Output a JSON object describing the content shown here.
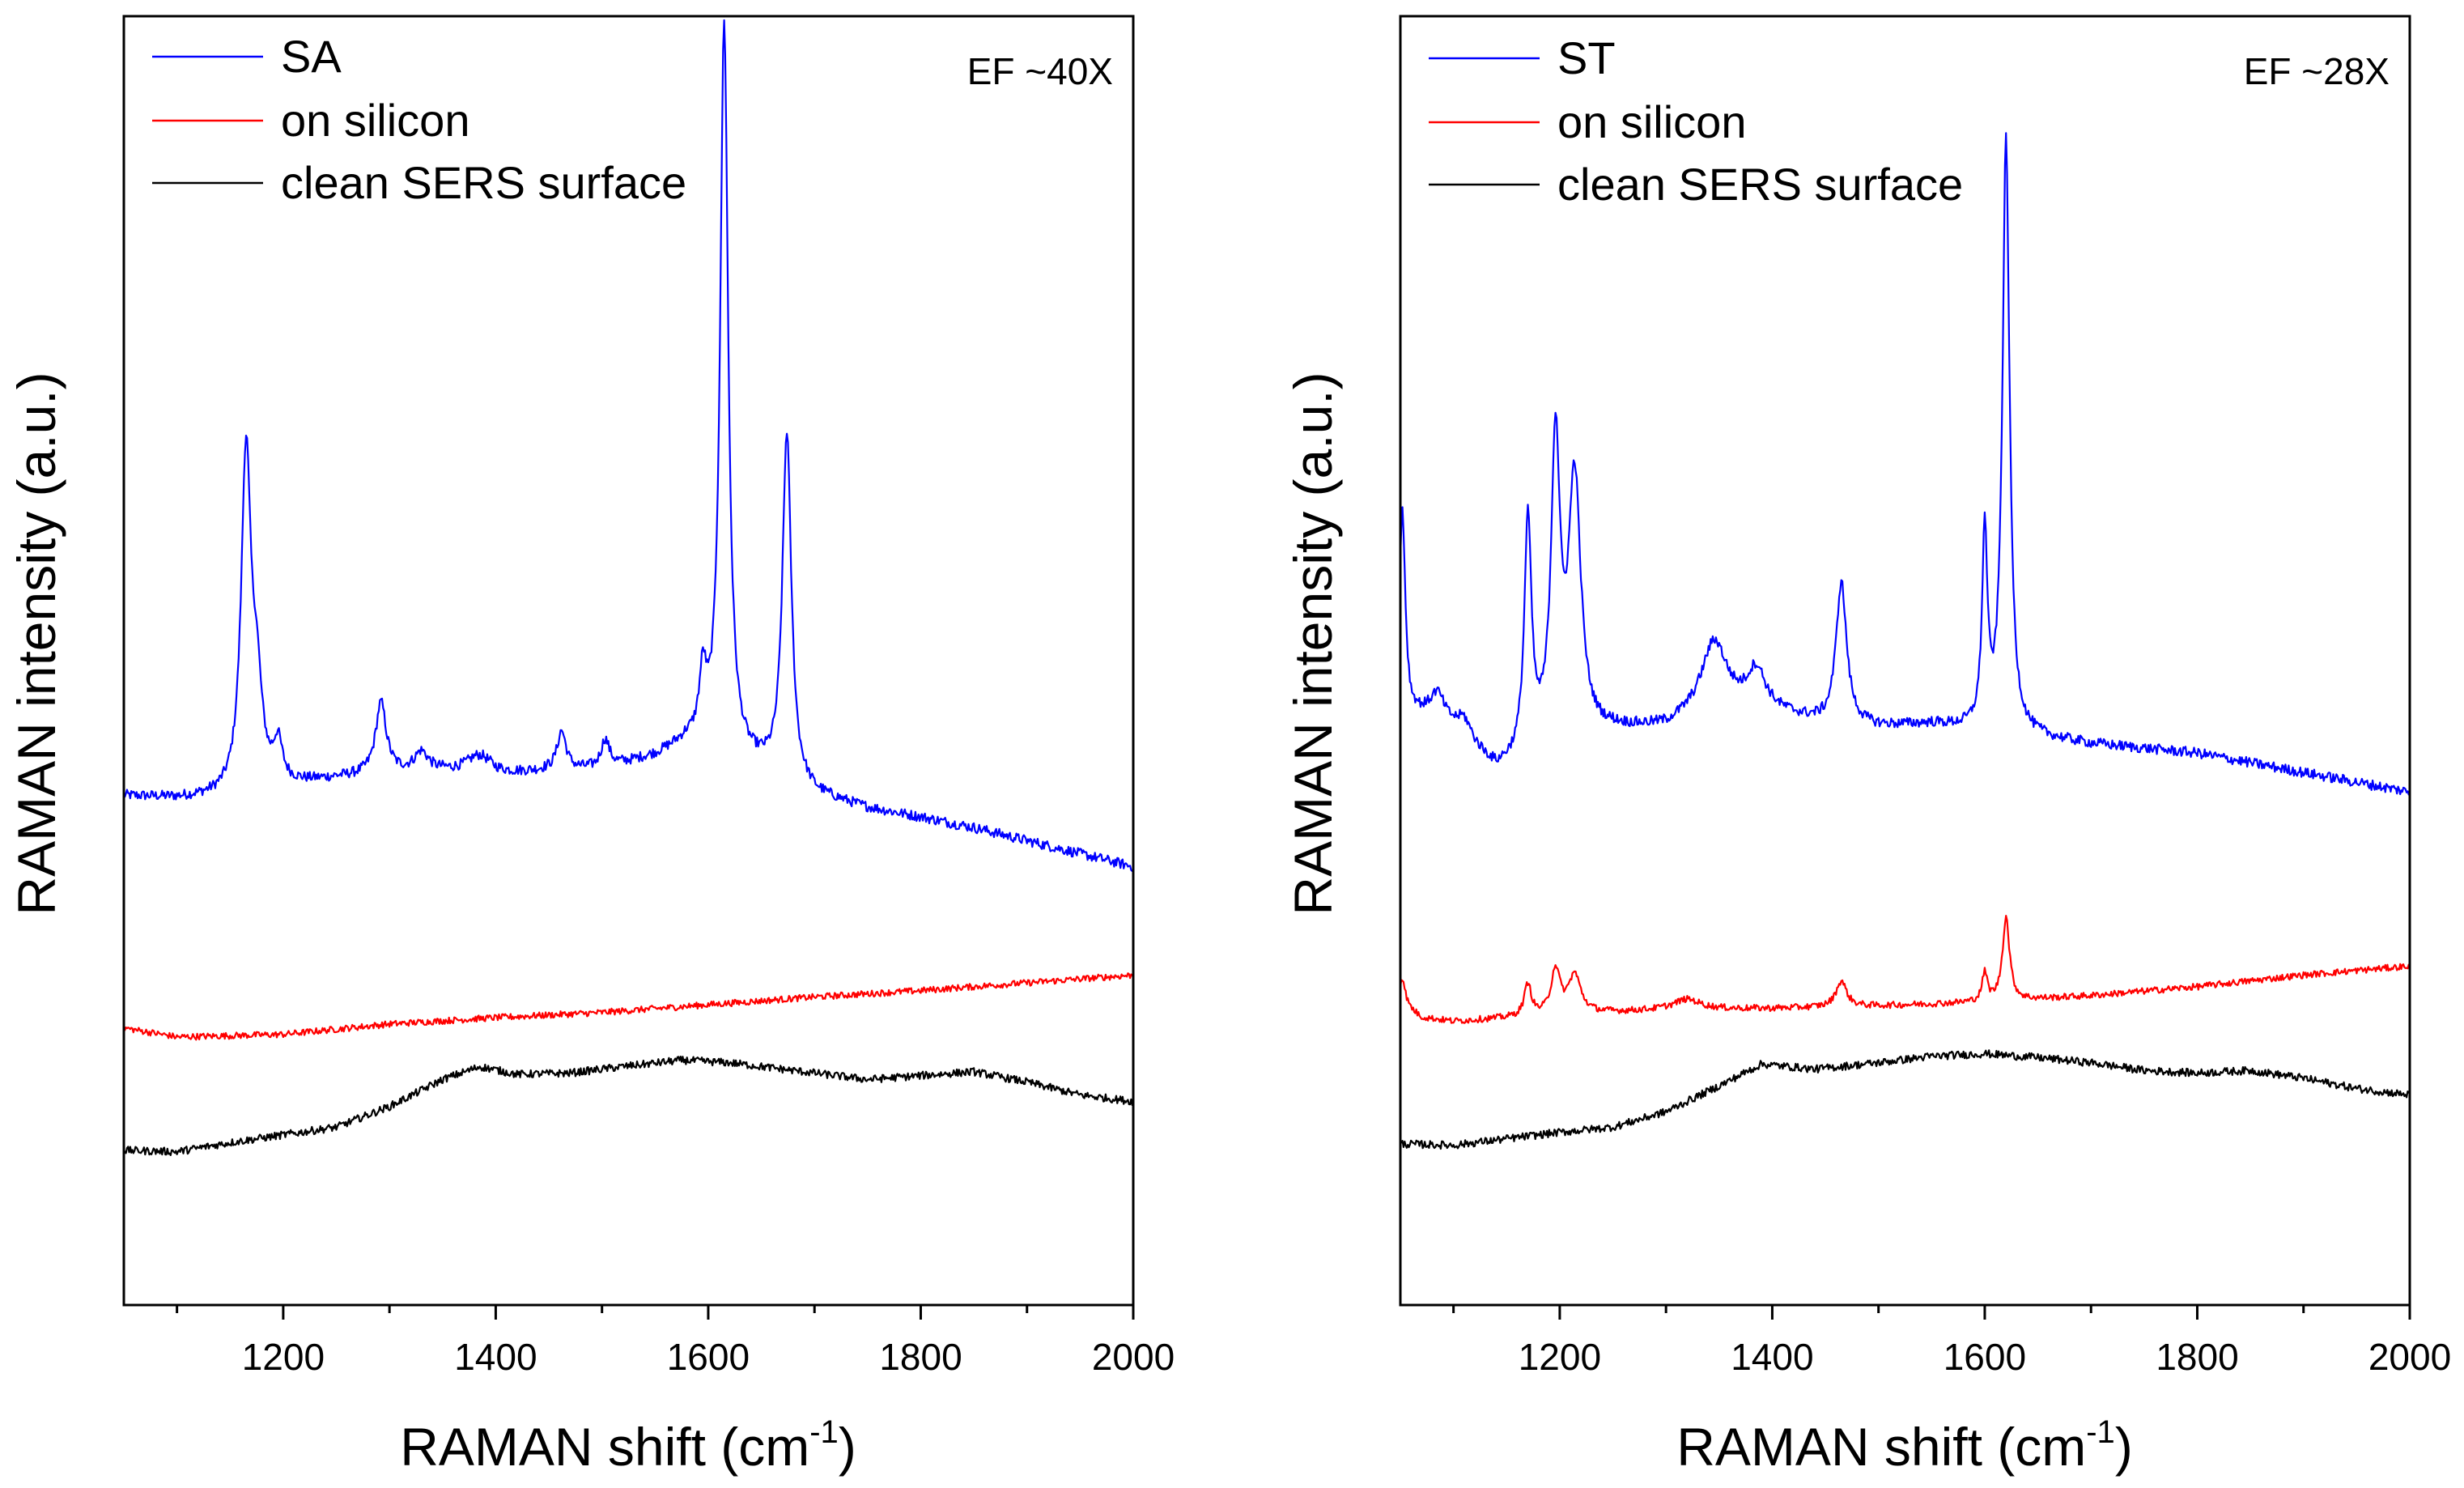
{
  "chart_data": [
    {
      "type": "line",
      "panel": "left",
      "annotation": "EF  ~40X",
      "xlabel": "RAMAN shift (cm",
      "xlabel_sup": "-1",
      "xlabel_end": ")",
      "ylabel": "RAMAN intensity (a.u.)",
      "xlim": [
        1050,
        2000
      ],
      "ylim": [
        0,
        100
      ],
      "y_ticks_shown": false,
      "x_ticks": [
        1200,
        1400,
        1600,
        1800,
        2000
      ],
      "x_tick_labels": [
        "1200",
        "1400",
        "1600",
        "1800",
        "2000"
      ],
      "series": [
        {
          "name": "SA",
          "color": "#0000ff",
          "baseline": [
            [
              1050,
              39.5
            ],
            [
              1100,
              39.3
            ],
            [
              1150,
              39.4
            ],
            [
              1200,
              40.2
            ],
            [
              1250,
              40.8
            ],
            [
              1300,
              41.2
            ],
            [
              1350,
              41.3
            ],
            [
              1400,
              41.0
            ],
            [
              1450,
              41.4
            ],
            [
              1500,
              41.5
            ],
            [
              1550,
              42.5
            ],
            [
              1580,
              43.5
            ],
            [
              1650,
              41.5
            ],
            [
              1700,
              39.5
            ],
            [
              1750,
              38.5
            ],
            [
              1800,
              37.8
            ],
            [
              1850,
              37.0
            ],
            [
              1900,
              36.0
            ],
            [
              1950,
              35.0
            ],
            [
              2000,
              34.0
            ]
          ],
          "peaks": [
            [
              1165,
              26,
              5.5
            ],
            [
              1175,
              7,
              6
            ],
            [
              1195,
              3,
              5
            ],
            [
              1292,
              5.5,
              6
            ],
            [
              1330,
              1.5,
              8
            ],
            [
              1385,
              1.5,
              15
            ],
            [
              1462,
              3,
              5
            ],
            [
              1503,
              2.2,
              5
            ],
            [
              1595,
              5,
              4
            ],
            [
              1615,
              57,
              4.5
            ],
            [
              1674,
              27,
              5
            ]
          ],
          "noise": 0.4
        },
        {
          "name": "on silicon",
          "color": "#ff0000",
          "baseline": [
            [
              1050,
              21.5
            ],
            [
              1100,
              20.8
            ],
            [
              1200,
              21.0
            ],
            [
              1300,
              21.8
            ],
            [
              1400,
              22.3
            ],
            [
              1500,
              22.7
            ],
            [
              1600,
              23.3
            ],
            [
              1700,
              23.9
            ],
            [
              1800,
              24.4
            ],
            [
              1900,
              25.0
            ],
            [
              2000,
              25.6
            ]
          ],
          "peaks": [],
          "noise": 0.25
        },
        {
          "name": "clean SERS surface",
          "color": "#000000",
          "baseline": [
            [
              1050,
              12.0
            ],
            [
              1100,
              11.9
            ],
            [
              1150,
              12.6
            ],
            [
              1200,
              13.2
            ],
            [
              1250,
              13.8
            ],
            [
              1300,
              15.4
            ],
            [
              1350,
              17.5
            ],
            [
              1385,
              18.5
            ],
            [
              1420,
              17.9
            ],
            [
              1470,
              18.0
            ],
            [
              1520,
              18.5
            ],
            [
              1575,
              19.0
            ],
            [
              1620,
              18.8
            ],
            [
              1680,
              18.2
            ],
            [
              1750,
              17.5
            ],
            [
              1800,
              17.8
            ],
            [
              1850,
              18.1
            ],
            [
              1900,
              17.3
            ],
            [
              1950,
              16.3
            ],
            [
              2000,
              15.8
            ]
          ],
          "peaks": [],
          "noise": 0.3
        }
      ]
    },
    {
      "type": "line",
      "panel": "right",
      "annotation": "EF  ~28X",
      "xlabel": "RAMAN shift (cm",
      "xlabel_sup": "-1",
      "xlabel_end": ")",
      "ylabel": "RAMAN intensity (a.u.)",
      "xlim": [
        1050,
        2000
      ],
      "ylim": [
        0,
        100
      ],
      "y_ticks_shown": false,
      "x_ticks": [
        1200,
        1400,
        1600,
        1800,
        2000
      ],
      "x_tick_labels": [
        "1200",
        "1400",
        "1600",
        "1800",
        "2000"
      ],
      "series": [
        {
          "name": "ST",
          "color": "#0000ff",
          "baseline": [
            [
              1050,
              48
            ],
            [
              1060,
              46
            ],
            [
              1080,
              45.5
            ],
            [
              1100,
              44.5
            ],
            [
              1120,
              43.0
            ],
            [
              1140,
              41.5
            ],
            [
              1160,
              42.0
            ],
            [
              1180,
              43.0
            ],
            [
              1250,
              44.5
            ],
            [
              1300,
              44.8
            ],
            [
              1350,
              46.5
            ],
            [
              1400,
              46.0
            ],
            [
              1450,
              45.0
            ],
            [
              1500,
              44.8
            ],
            [
              1550,
              45.0
            ],
            [
              1650,
              44.0
            ],
            [
              1700,
              43.5
            ],
            [
              1800,
              42.8
            ],
            [
              1900,
              41.3
            ],
            [
              2000,
              39.8
            ]
          ],
          "peaks": [
            [
              1052,
              14,
              3
            ],
            [
              1085,
              2,
              8
            ],
            [
              1110,
              1.5,
              8
            ],
            [
              1170,
              18,
              4
            ],
            [
              1196,
              23,
              5
            ],
            [
              1214,
              20,
              7
            ],
            [
              1345,
              5,
              14
            ],
            [
              1385,
              3,
              10
            ],
            [
              1465,
              11,
              6
            ],
            [
              1600,
              15,
              3
            ],
            [
              1620,
              46,
              4
            ]
          ],
          "noise": 0.4
        },
        {
          "name": "on silicon",
          "color": "#ff0000",
          "baseline": [
            [
              1050,
              23.5
            ],
            [
              1070,
              22.3
            ],
            [
              1100,
              22.0
            ],
            [
              1200,
              22.5
            ],
            [
              1300,
              22.9
            ],
            [
              1400,
              23.0
            ],
            [
              1500,
              23.2
            ],
            [
              1600,
              23.5
            ],
            [
              1700,
              24.0
            ],
            [
              1800,
              24.7
            ],
            [
              1900,
              25.6
            ],
            [
              2000,
              26.3
            ]
          ],
          "peaks": [
            [
              1052,
              2,
              3
            ],
            [
              1170,
              2.5,
              4
            ],
            [
              1196,
              3.5,
              5
            ],
            [
              1214,
              3,
              7
            ],
            [
              1320,
              0.8,
              15
            ],
            [
              1465,
              2,
              6
            ],
            [
              1600,
              2.2,
              3
            ],
            [
              1620,
              6.5,
              4
            ]
          ],
          "noise": 0.25
        },
        {
          "name": "clean SERS surface",
          "color": "#000000",
          "baseline": [
            [
              1050,
              12.5
            ],
            [
              1100,
              12.4
            ],
            [
              1150,
              12.9
            ],
            [
              1200,
              13.4
            ],
            [
              1250,
              13.8
            ],
            [
              1300,
              15.0
            ],
            [
              1350,
              17.0
            ],
            [
              1390,
              18.7
            ],
            [
              1440,
              18.3
            ],
            [
              1500,
              18.8
            ],
            [
              1550,
              19.3
            ],
            [
              1600,
              19.5
            ],
            [
              1650,
              19.2
            ],
            [
              1700,
              18.8
            ],
            [
              1750,
              18.2
            ],
            [
              1800,
              18.0
            ],
            [
              1850,
              18.2
            ],
            [
              1900,
              17.6
            ],
            [
              1950,
              16.8
            ],
            [
              2000,
              16.3
            ]
          ],
          "peaks": [],
          "noise": 0.3
        }
      ]
    }
  ]
}
